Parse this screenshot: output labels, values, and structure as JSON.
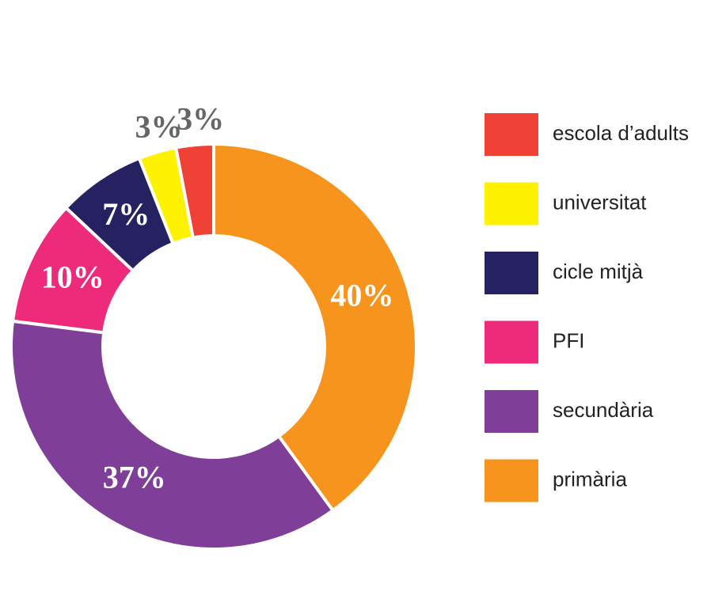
{
  "chart_data": {
    "type": "donut",
    "categories": [
      "escola d’adults",
      "universitat",
      "cicle mitjà",
      "PFI",
      "secundària",
      "primària"
    ],
    "values": [
      3,
      3,
      7,
      10,
      37,
      40
    ],
    "value_labels": [
      "3%",
      "3%",
      "7%",
      "10%",
      "37%",
      "40%"
    ],
    "colors": [
      "#ef4136",
      "#fff200",
      "#262262",
      "#ee2a7b",
      "#7f3f98",
      "#f7941d"
    ],
    "legend": "right"
  }
}
